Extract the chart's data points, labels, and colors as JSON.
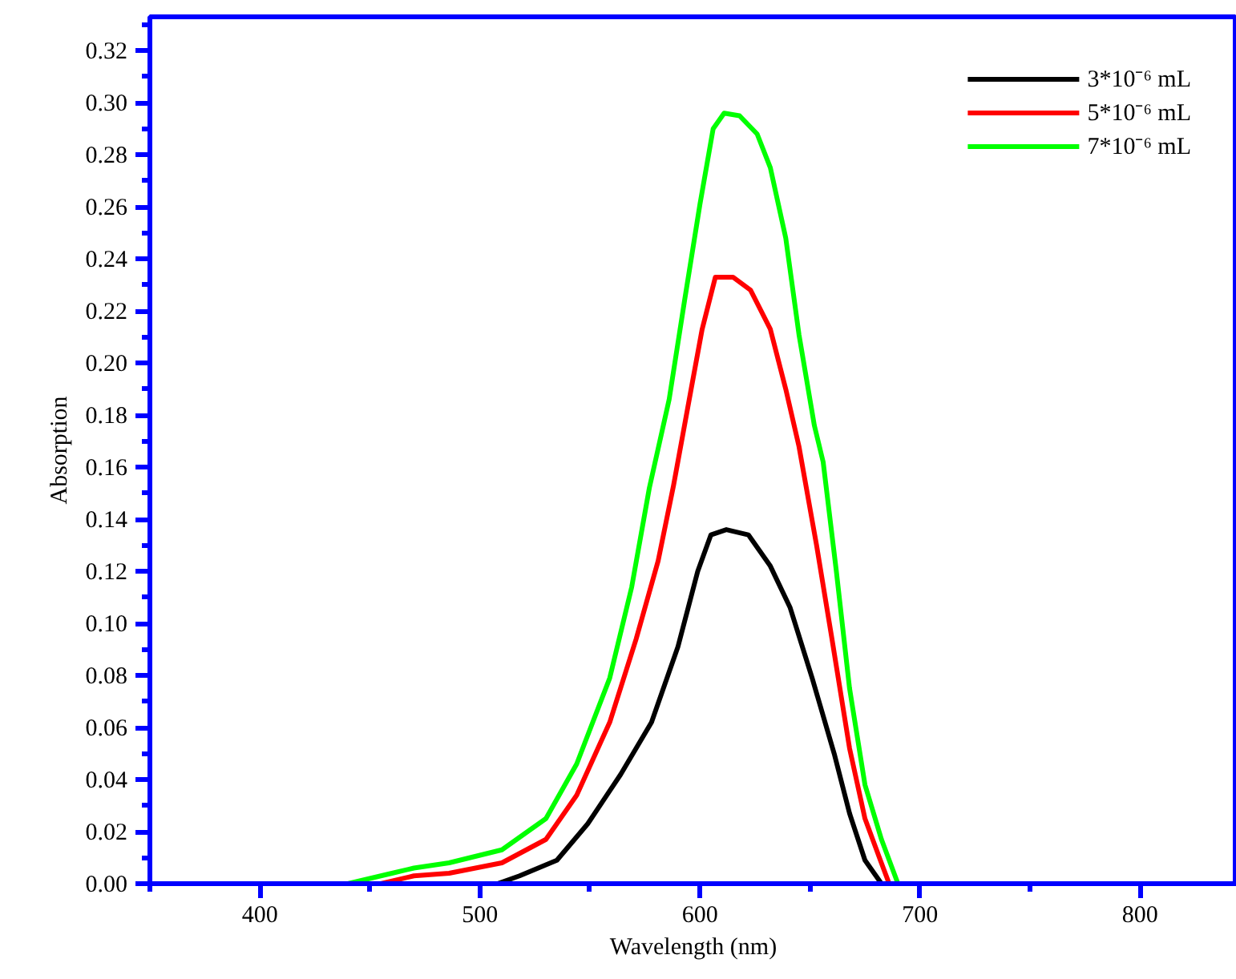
{
  "chart_data": {
    "type": "line",
    "xlabel": "Wavelength (nm)",
    "ylabel": "Absorption",
    "xlim": [
      350,
      844
    ],
    "xticks": [
      400,
      500,
      600,
      700,
      800
    ],
    "ylim": [
      0,
      0.333
    ],
    "yticks": [
      {
        "value": 0.0,
        "label": "0.00"
      },
      {
        "value": 0.02,
        "label": "0.02"
      },
      {
        "value": 0.04,
        "label": "0.04"
      },
      {
        "value": 0.06,
        "label": "0.06"
      },
      {
        "value": 0.08,
        "label": "0.08"
      },
      {
        "value": 0.1,
        "label": "0.10"
      },
      {
        "value": 0.12,
        "label": "0.12"
      },
      {
        "value": 0.14,
        "label": "0.14"
      },
      {
        "value": 0.16,
        "label": "0.16"
      },
      {
        "value": 0.18,
        "label": "0.18"
      },
      {
        "value": 0.2,
        "label": "0.20"
      },
      {
        "value": 0.22,
        "label": "0.22"
      },
      {
        "value": 0.24,
        "label": "0.24"
      },
      {
        "value": 0.26,
        "label": "0.26"
      },
      {
        "value": 0.28,
        "label": "0.28"
      },
      {
        "value": 0.3,
        "label": "0.30"
      },
      {
        "value": 0.32,
        "label": "0.32"
      }
    ],
    "grid": false,
    "legend": "top right",
    "line_style": "solid",
    "series": [
      {
        "name": "3*10⁻⁶ mL",
        "color": "#000000",
        "x": [
          508,
          518,
          535,
          549,
          564,
          578,
          590,
          599,
          605,
          612,
          622,
          632,
          641,
          651,
          661,
          668,
          675,
          682.5
        ],
        "values": [
          0,
          0.003,
          0.009,
          0.023,
          0.042,
          0.062,
          0.091,
          0.12,
          0.134,
          0.136,
          0.134,
          0.122,
          0.106,
          0.079,
          0.05,
          0.027,
          0.009,
          0
        ]
      },
      {
        "name": "5*10⁻⁶ mL",
        "color": "#ff0000",
        "x": [
          455,
          470,
          486,
          510,
          530,
          544,
          559,
          571,
          581,
          588,
          596,
          601,
          607,
          615,
          623,
          632,
          639,
          645,
          653,
          660,
          668,
          675,
          682,
          686
        ],
        "values": [
          0,
          0.003,
          0.004,
          0.008,
          0.017,
          0.034,
          0.062,
          0.094,
          0.124,
          0.153,
          0.19,
          0.213,
          0.233,
          0.233,
          0.228,
          0.213,
          0.19,
          0.168,
          0.13,
          0.094,
          0.052,
          0.025,
          0.009,
          0
        ]
      },
      {
        "name": "7*10⁻⁶ mL",
        "color": "#00ff00",
        "x": [
          440,
          460,
          470,
          486,
          510,
          530,
          544,
          559,
          569,
          577,
          586,
          593,
          600,
          606,
          611,
          618,
          626,
          632,
          639,
          645,
          652,
          656,
          662,
          668,
          675,
          682.5,
          690
        ],
        "values": [
          0,
          0.004,
          0.006,
          0.008,
          0.013,
          0.025,
          0.046,
          0.079,
          0.114,
          0.152,
          0.186,
          0.224,
          0.261,
          0.29,
          0.296,
          0.295,
          0.288,
          0.275,
          0.248,
          0.211,
          0.176,
          0.162,
          0.12,
          0.075,
          0.038,
          0.017,
          0
        ]
      }
    ]
  }
}
